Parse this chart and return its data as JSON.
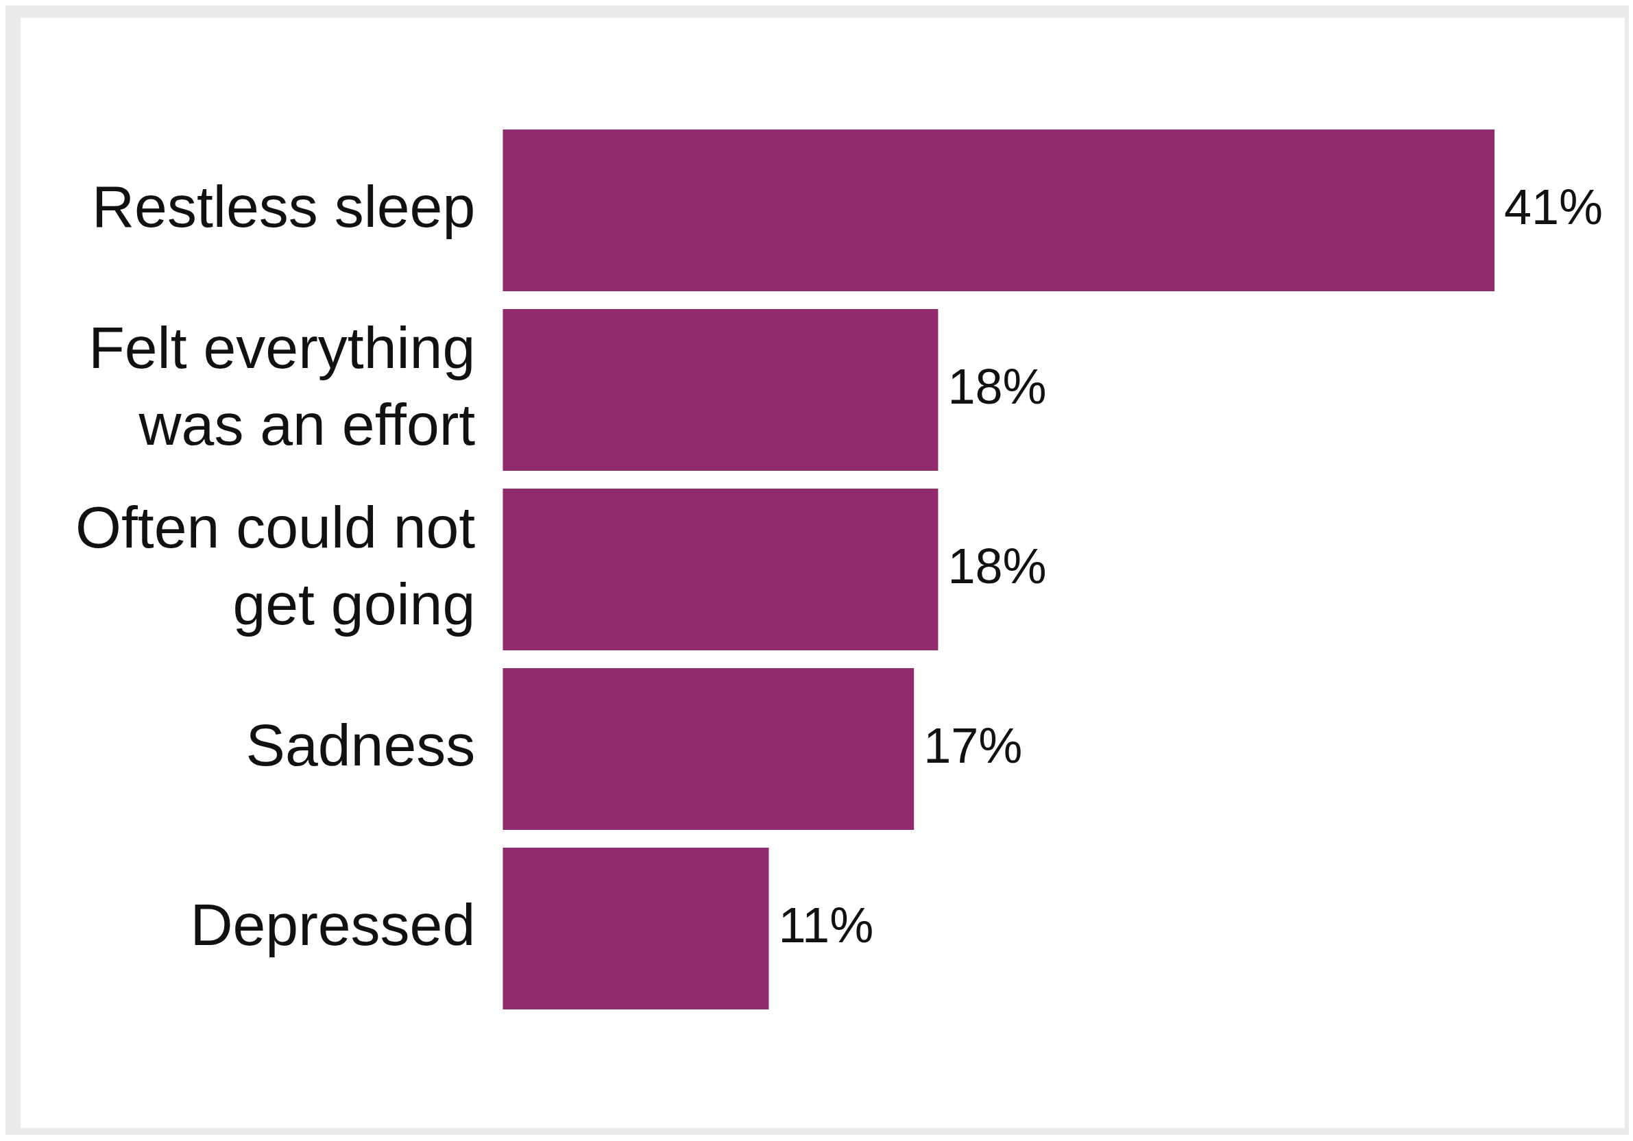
{
  "chart_data": {
    "type": "bar",
    "orientation": "horizontal",
    "categories": [
      "Restless sleep",
      "Felt everything was an effort",
      "Often could not get going",
      "Sadness",
      "Depressed"
    ],
    "values": [
      41,
      18,
      18,
      17,
      11
    ],
    "value_labels": [
      "41%",
      "18%",
      "18%",
      "17%",
      "11%"
    ],
    "color": "#922b6e",
    "legend": false,
    "tick_labels": "y"
  }
}
